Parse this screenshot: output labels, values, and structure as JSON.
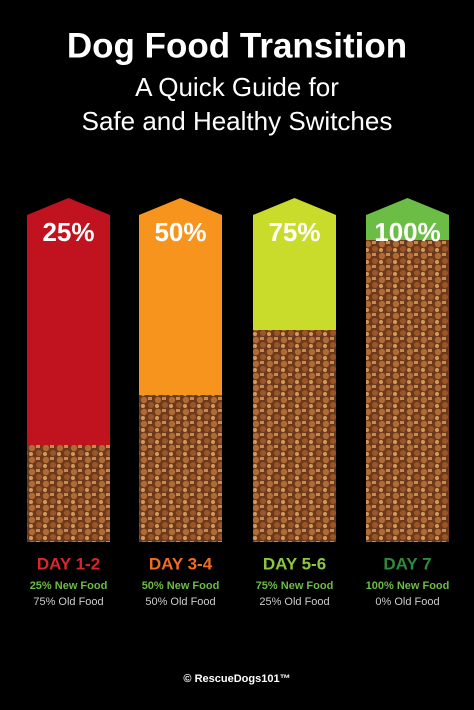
{
  "header": {
    "title": "Dog Food Transition",
    "subtitle_lines": [
      "A Quick Guide for",
      "Safe and Healthy Switches"
    ]
  },
  "columns": [
    {
      "percent": "25%",
      "day": "DAY 1-2",
      "new_food": "25% New Food",
      "old_food": "75% Old Food"
    },
    {
      "percent": "50%",
      "day": "DAY 3-4",
      "new_food": "50% New Food",
      "old_food": "50% Old Food"
    },
    {
      "percent": "75%",
      "day": "DAY 5-6",
      "new_food": "75% New Food",
      "old_food": "25% Old Food"
    },
    {
      "percent": "100%",
      "day": "DAY 7",
      "new_food": "100% New Food",
      "old_food": "0% Old Food"
    }
  ],
  "footer": "© RescueDogs101™"
}
